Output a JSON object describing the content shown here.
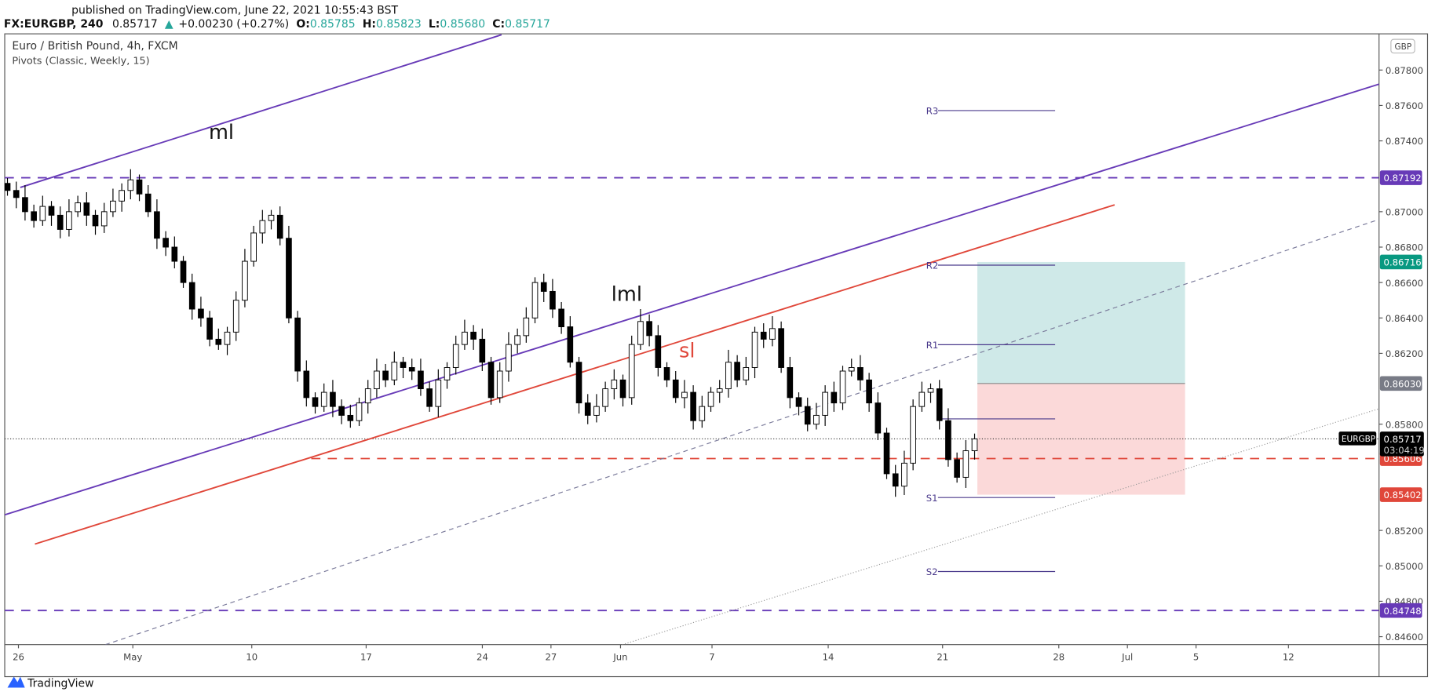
{
  "header": {
    "published": "published on TradingView.com, June 22, 2021 10:55:43 BST",
    "symbol": "FX:EURGBP, 240",
    "last": "0.85717",
    "change": "+0.00230 (+0.27%)",
    "o_label": "O:",
    "o": "0.85785",
    "h_label": "H:",
    "h": "0.85823",
    "l_label": "L:",
    "l": "0.85680",
    "c_label": "C:",
    "c": "0.85717"
  },
  "legend": {
    "title": "Euro / British Pound, 4h, FXCM",
    "indicator": "Pivots (Classic, Weekly, 15)"
  },
  "annotations": {
    "ml": "ml",
    "lml": "lml",
    "sl": "sl"
  },
  "price_axis": {
    "currency": "GBP",
    "ticks": [
      "0.87800",
      "0.87600",
      "0.87400",
      "0.87000",
      "0.86800",
      "0.86600",
      "0.86400",
      "0.86200",
      "0.85800",
      "0.85200",
      "0.85000",
      "0.84800",
      "0.84600"
    ],
    "badges": {
      "upper_level": "0.87192",
      "target": "0.86716",
      "entry": "0.86030",
      "current": "0.85717",
      "countdown": "03:04:19",
      "red_level": "0.85606",
      "stop": "0.85402",
      "lower_level": "0.84748"
    },
    "symbol_tag": "EURGBP"
  },
  "time_axis": {
    "ticks": [
      "26",
      "May",
      "10",
      "17",
      "24",
      "27",
      "Jun",
      "7",
      "14",
      "21",
      "28",
      "Jul",
      "5",
      "12"
    ]
  },
  "pivots": {
    "R3": "R3",
    "R2": "R2",
    "R1": "R1",
    "S1": "S1",
    "S2": "S2"
  },
  "colors": {
    "purple": "#673ab7",
    "red": "#e0473a",
    "teal": "#089981",
    "up": "#ffffff",
    "down": "#000000",
    "target_fill": "#cfe9e8",
    "stop_fill": "#fbd9d9"
  },
  "logo": {
    "text": "TradingView"
  },
  "chart_data": {
    "type": "candlestick",
    "symbol": "EURGBP",
    "interval": "4h",
    "ylim": [
      0.8455,
      0.879
    ],
    "closes": [
      0.8712,
      0.8708,
      0.87,
      0.8695,
      0.8703,
      0.8698,
      0.869,
      0.87,
      0.8705,
      0.8698,
      0.8692,
      0.87,
      0.8706,
      0.8712,
      0.8718,
      0.871,
      0.87,
      0.8685,
      0.868,
      0.8672,
      0.866,
      0.8645,
      0.864,
      0.8628,
      0.8625,
      0.8632,
      0.865,
      0.8672,
      0.8688,
      0.8695,
      0.8698,
      0.8685,
      0.864,
      0.861,
      0.8595,
      0.859,
      0.8598,
      0.859,
      0.8585,
      0.8582,
      0.8592,
      0.86,
      0.861,
      0.8605,
      0.8615,
      0.8612,
      0.861,
      0.86,
      0.859,
      0.8605,
      0.8612,
      0.8625,
      0.8632,
      0.8628,
      0.8615,
      0.8595,
      0.861,
      0.8625,
      0.863,
      0.864,
      0.866,
      0.8655,
      0.8645,
      0.8635,
      0.8615,
      0.8592,
      0.8585,
      0.859,
      0.86,
      0.8605,
      0.8595,
      0.8625,
      0.8638,
      0.863,
      0.8612,
      0.8605,
      0.8595,
      0.8598,
      0.8582,
      0.859,
      0.8598,
      0.86,
      0.8615,
      0.8605,
      0.8612,
      0.8632,
      0.8628,
      0.8634,
      0.8612,
      0.8595,
      0.859,
      0.858,
      0.8585,
      0.8598,
      0.8592,
      0.861,
      0.8612,
      0.8605,
      0.8592,
      0.8575,
      0.8552,
      0.8545,
      0.8558,
      0.859,
      0.8598,
      0.86,
      0.8582,
      0.856,
      0.855,
      0.8565,
      0.85717
    ],
    "pivot_levels": {
      "R3": 0.87571,
      "R2": 0.86698,
      "R1": 0.86249,
      "P": 0.8583,
      "S1": 0.85386,
      "S2": 0.84968
    },
    "horizontal_levels": [
      0.87192,
      0.85606,
      0.84748
    ],
    "position": {
      "target": 0.86716,
      "entry": 0.8603,
      "stop": 0.85402
    }
  }
}
